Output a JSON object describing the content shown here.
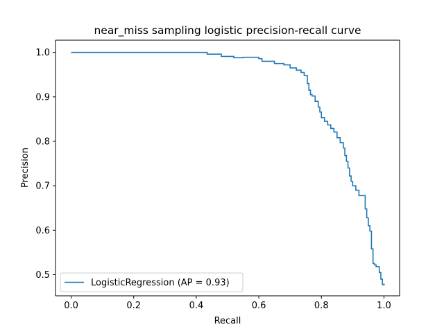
{
  "chart_data": {
    "type": "line",
    "title": "near_miss sampling logistic precision-recall curve",
    "xlabel": "Recall",
    "ylabel": "Precision",
    "xlim": [
      -0.05,
      1.05
    ],
    "ylim": [
      0.4525,
      1.0275
    ],
    "x_ticks": [
      0.0,
      0.2,
      0.4,
      0.6,
      0.8,
      1.0
    ],
    "x_tick_labels": [
      "0.0",
      "0.2",
      "0.4",
      "0.6",
      "0.8",
      "1.0"
    ],
    "y_ticks": [
      0.5,
      0.6,
      0.7,
      0.8,
      0.9,
      1.0
    ],
    "y_tick_labels": [
      "0.5",
      "0.6",
      "0.7",
      "0.8",
      "0.9",
      "1.0"
    ],
    "grid": false,
    "legend_position": "lower-left",
    "series_color": "#1f77b4",
    "series": [
      {
        "name": "LogisticRegression (AP = 0.93)",
        "step": "post",
        "x": [
          0.0,
          0.435,
          0.435,
          0.48,
          0.48,
          0.52,
          0.52,
          0.55,
          0.55,
          0.6,
          0.6,
          0.61,
          0.61,
          0.65,
          0.65,
          0.68,
          0.68,
          0.7,
          0.7,
          0.72,
          0.72,
          0.735,
          0.735,
          0.745,
          0.745,
          0.755,
          0.755,
          0.76,
          0.76,
          0.765,
          0.765,
          0.77,
          0.77,
          0.78,
          0.78,
          0.79,
          0.79,
          0.795,
          0.795,
          0.8,
          0.8,
          0.81,
          0.81,
          0.82,
          0.82,
          0.83,
          0.83,
          0.84,
          0.84,
          0.85,
          0.85,
          0.86,
          0.86,
          0.87,
          0.87,
          0.875,
          0.875,
          0.88,
          0.88,
          0.885,
          0.885,
          0.89,
          0.89,
          0.895,
          0.895,
          0.9,
          0.9,
          0.91,
          0.91,
          0.92,
          0.92,
          0.94,
          0.94,
          0.945,
          0.945,
          0.95,
          0.95,
          0.955,
          0.955,
          0.96,
          0.96,
          0.965,
          0.965,
          0.97,
          0.97,
          0.975,
          0.975,
          0.985,
          0.985,
          0.99,
          0.99,
          0.995,
          0.995,
          1.0
        ],
        "y": [
          1.0,
          1.0,
          0.996,
          0.996,
          0.991,
          0.991,
          0.988,
          0.988,
          0.989,
          0.989,
          0.986,
          0.986,
          0.98,
          0.98,
          0.975,
          0.975,
          0.972,
          0.972,
          0.965,
          0.965,
          0.96,
          0.96,
          0.955,
          0.955,
          0.948,
          0.948,
          0.93,
          0.93,
          0.915,
          0.915,
          0.905,
          0.905,
          0.902,
          0.902,
          0.89,
          0.89,
          0.877,
          0.877,
          0.866,
          0.866,
          0.853,
          0.853,
          0.845,
          0.845,
          0.837,
          0.837,
          0.829,
          0.829,
          0.821,
          0.821,
          0.808,
          0.808,
          0.797,
          0.797,
          0.785,
          0.785,
          0.768,
          0.768,
          0.755,
          0.755,
          0.74,
          0.74,
          0.722,
          0.722,
          0.71,
          0.71,
          0.7,
          0.7,
          0.69,
          0.69,
          0.678,
          0.678,
          0.648,
          0.648,
          0.628,
          0.628,
          0.61,
          0.61,
          0.598,
          0.598,
          0.558,
          0.558,
          0.525,
          0.525,
          0.522,
          0.522,
          0.518,
          0.518,
          0.505,
          0.505,
          0.49,
          0.49,
          0.478,
          0.478
        ]
      }
    ]
  }
}
